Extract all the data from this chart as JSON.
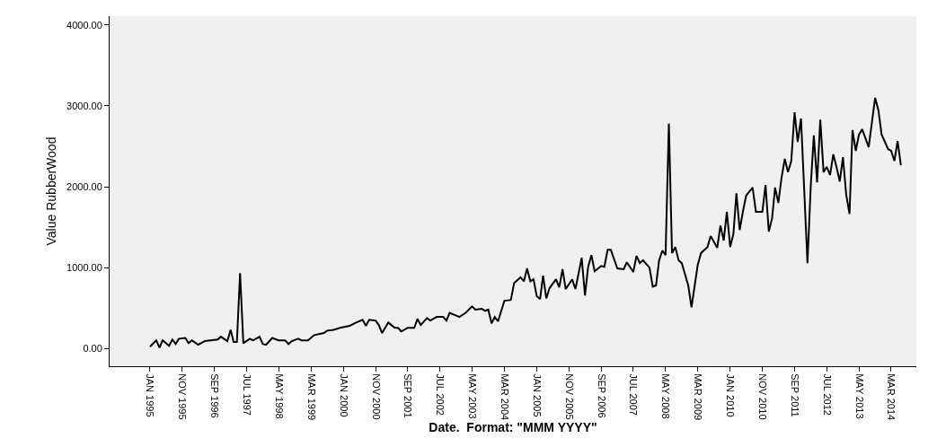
{
  "chart_data": {
    "type": "line",
    "xlabel": "Date.  Format: \"MMM YYYY\"",
    "ylabel": "Value RubberWood",
    "x": [
      "1995-01",
      "1995-03",
      "1995-04",
      "1995-05",
      "1995-07",
      "1995-08",
      "1995-09",
      "1995-10",
      "1995-12",
      "1996-01",
      "1996-02",
      "1996-04",
      "1996-06",
      "1996-10",
      "1996-11",
      "1997-01",
      "1997-02",
      "1997-03",
      "1997-04",
      "1997-05",
      "1997-06",
      "1997-08",
      "1997-09",
      "1997-11",
      "1997-12",
      "1998-01",
      "1998-03",
      "1998-05",
      "1998-07",
      "1998-08",
      "1998-09",
      "1998-11",
      "1998-12",
      "1999-02",
      "1999-04",
      "1999-07",
      "1999-08",
      "1999-10",
      "1999-12",
      "2000-03",
      "2000-05",
      "2000-07",
      "2000-08",
      "2000-09",
      "2000-11",
      "2000-12",
      "2001-01",
      "2001-03",
      "2001-05",
      "2001-06",
      "2001-07",
      "2001-09",
      "2001-11",
      "2001-12",
      "2002-01",
      "2002-03",
      "2002-04",
      "2002-06",
      "2002-08",
      "2002-09",
      "2002-10",
      "2003-01",
      "2003-03",
      "2003-05",
      "2003-06",
      "2003-08",
      "2003-09",
      "2003-10",
      "2003-11",
      "2003-12",
      "2004-01",
      "2004-03",
      "2004-05",
      "2004-06",
      "2004-08",
      "2004-09",
      "2004-10",
      "2004-11",
      "2004-12",
      "2005-01",
      "2005-02",
      "2005-03",
      "2005-04",
      "2005-05",
      "2005-07",
      "2005-08",
      "2005-09",
      "2005-10",
      "2005-12",
      "2006-01",
      "2006-03",
      "2006-04",
      "2006-05",
      "2006-06",
      "2006-07",
      "2006-09",
      "2006-10",
      "2006-11",
      "2006-12",
      "2007-02",
      "2007-04",
      "2007-05",
      "2007-07",
      "2007-08",
      "2007-09",
      "2007-10",
      "2007-12",
      "2008-01",
      "2008-02",
      "2008-03",
      "2008-04",
      "2008-05",
      "2008-06",
      "2008-07",
      "2008-08",
      "2008-09",
      "2008-10",
      "2008-12",
      "2009-01",
      "2009-03",
      "2009-04",
      "2009-06",
      "2009-07",
      "2009-09",
      "2009-10",
      "2009-11",
      "2009-12",
      "2010-01",
      "2010-02",
      "2010-03",
      "2010-04",
      "2010-05",
      "2010-06",
      "2010-08",
      "2010-09",
      "2010-11",
      "2010-12",
      "2011-01",
      "2011-02",
      "2011-03",
      "2011-04",
      "2011-05",
      "2011-06",
      "2011-07",
      "2011-08",
      "2011-09",
      "2011-10",
      "2011-11",
      "2012-01",
      "2012-02",
      "2012-03",
      "2012-04",
      "2012-05",
      "2012-06",
      "2012-07",
      "2012-08",
      "2012-09",
      "2012-10",
      "2012-11",
      "2012-12",
      "2013-01",
      "2013-02",
      "2013-03",
      "2013-04",
      "2013-05",
      "2013-06",
      "2013-08",
      "2013-10",
      "2013-11",
      "2013-12",
      "2014-02",
      "2014-03",
      "2014-04",
      "2014-05",
      "2014-06"
    ],
    "series": [
      {
        "color": "#000000",
        "values": [
          22,
          100,
          10,
          100,
          33,
          110,
          55,
          120,
          130,
          65,
          100,
          45,
          90,
          110,
          145,
          90,
          230,
          80,
          80,
          930,
          65,
          120,
          100,
          145,
          55,
          45,
          130,
          100,
          100,
          55,
          90,
          120,
          100,
          100,
          165,
          190,
          220,
          230,
          255,
          280,
          320,
          355,
          280,
          355,
          345,
          290,
          190,
          320,
          255,
          255,
          210,
          255,
          255,
          365,
          290,
          375,
          345,
          390,
          390,
          345,
          440,
          390,
          440,
          520,
          480,
          490,
          465,
          480,
          310,
          390,
          335,
          590,
          600,
          810,
          880,
          830,
          990,
          830,
          855,
          645,
          610,
          900,
          620,
          745,
          855,
          755,
          980,
          735,
          855,
          735,
          1120,
          655,
          1010,
          1155,
          955,
          1020,
          1010,
          1220,
          1220,
          990,
          980,
          1065,
          945,
          1145,
          1055,
          1090,
          1000,
          765,
          780,
          1090,
          1210,
          1155,
          2780,
          1180,
          1255,
          1090,
          1055,
          780,
          510,
          1035,
          1180,
          1255,
          1390,
          1245,
          1520,
          1335,
          1690,
          1255,
          1420,
          1920,
          1465,
          1690,
          1890,
          1990,
          1690,
          1690,
          2020,
          1445,
          1610,
          1990,
          1800,
          2110,
          2345,
          2180,
          2320,
          2920,
          2555,
          2845,
          1055,
          2010,
          2635,
          2055,
          2830,
          2180,
          2245,
          2145,
          2400,
          2245,
          2065,
          2365,
          1900,
          1665,
          2700,
          2445,
          2645,
          2710,
          2490,
          3100,
          2945,
          2645,
          2465,
          2445,
          2320,
          2565,
          2265
        ]
      }
    ],
    "xlim": [
      "1993-12-16",
      "2014-10-25"
    ],
    "xticks": [
      {
        "value": "1995-01",
        "label": "JAN 1995"
      },
      {
        "value": "1995-11",
        "label": "NOV 1995"
      },
      {
        "value": "1996-09",
        "label": "SEP 1996"
      },
      {
        "value": "1997-07",
        "label": "JUL 1997"
      },
      {
        "value": "1998-05",
        "label": "MAY 1998"
      },
      {
        "value": "1999-03",
        "label": "MAR 1999"
      },
      {
        "value": "2000-01",
        "label": "JAN 2000"
      },
      {
        "value": "2000-11",
        "label": "NOV 2000"
      },
      {
        "value": "2001-09",
        "label": "SEP 2001"
      },
      {
        "value": "2002-07",
        "label": "JUL 2002"
      },
      {
        "value": "2003-05",
        "label": "MAY 2003"
      },
      {
        "value": "2004-03",
        "label": "MAR 2004"
      },
      {
        "value": "2005-01",
        "label": "JAN 2005"
      },
      {
        "value": "2005-11",
        "label": "NOV 2005"
      },
      {
        "value": "2006-09",
        "label": "SEP 2006"
      },
      {
        "value": "2007-07",
        "label": "JUL 2007"
      },
      {
        "value": "2008-05",
        "label": "MAY 2008"
      },
      {
        "value": "2009-03",
        "label": "MAR 2009"
      },
      {
        "value": "2010-01",
        "label": "JAN 2010"
      },
      {
        "value": "2010-11",
        "label": "NOV 2010"
      },
      {
        "value": "2011-09",
        "label": "SEP 2011"
      },
      {
        "value": "2012-07",
        "label": "JUL 2012"
      },
      {
        "value": "2013-05",
        "label": "MAY 2013"
      },
      {
        "value": "2014-03",
        "label": "MAR 2014"
      }
    ],
    "ylim": [
      -220,
      4110
    ],
    "yticks": [
      {
        "value": 0,
        "label": "0.00"
      },
      {
        "value": 1000,
        "label": "1000.00"
      },
      {
        "value": 2000,
        "label": "2000.00"
      },
      {
        "value": 3000,
        "label": "3000.00"
      },
      {
        "value": 4000,
        "label": "4000.00"
      }
    ]
  }
}
